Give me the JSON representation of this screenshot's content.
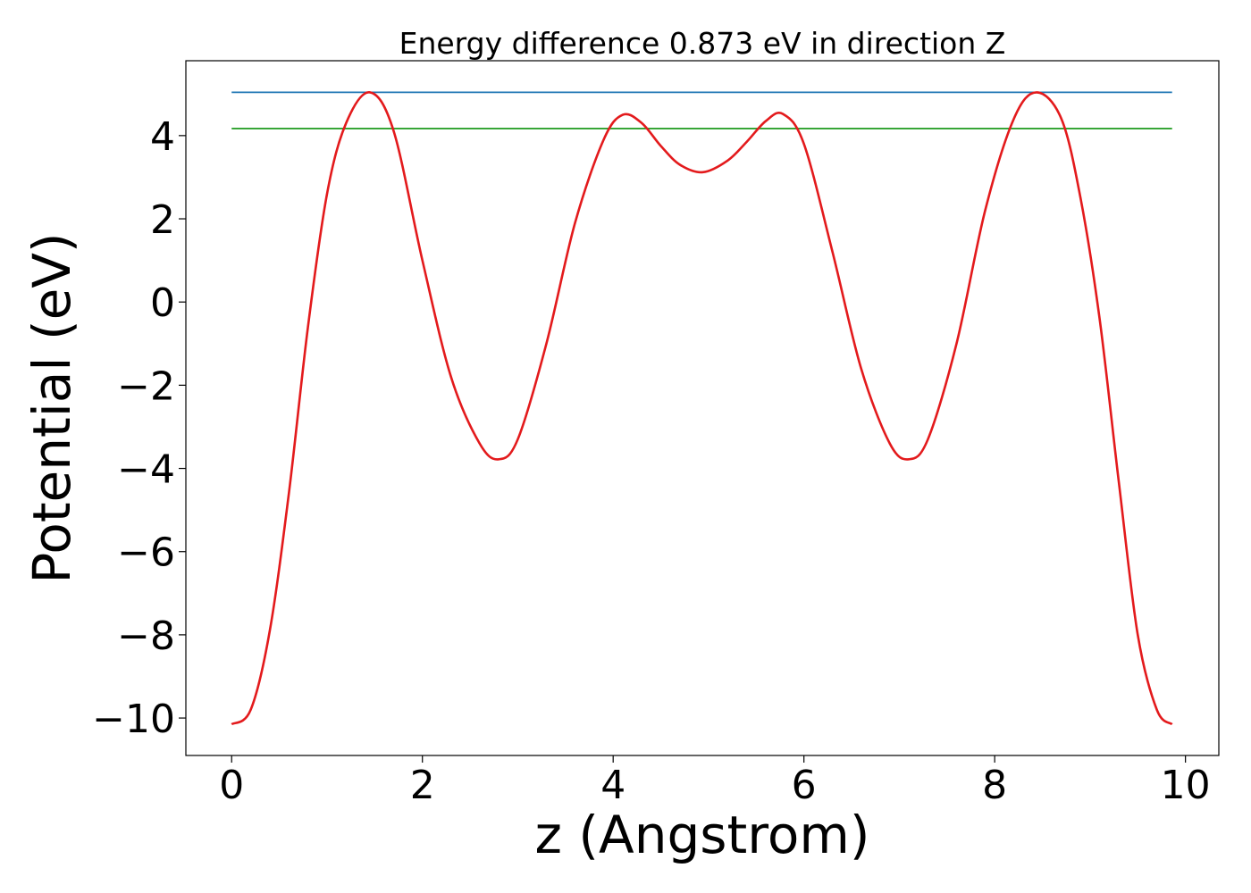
{
  "chart_data": {
    "type": "line",
    "title": "Energy difference 0.873 eV in direction Z",
    "xlabel": "z (Angstrom)",
    "ylabel": "Potential (eV)",
    "xlim": [
      -0.48,
      10.35
    ],
    "ylim": [
      -10.9,
      5.8
    ],
    "xticks": [
      0,
      2,
      4,
      6,
      8,
      10
    ],
    "yticks": [
      4,
      2,
      0,
      -2,
      -4,
      -6,
      -8,
      -10
    ],
    "xtick_labels": [
      "0",
      "2",
      "4",
      "6",
      "8",
      "10"
    ],
    "ytick_labels": [
      "4",
      "2",
      "0",
      "−2",
      "−4",
      "−6",
      "−8",
      "−10"
    ],
    "grid": false,
    "legend": false,
    "series": [
      {
        "kind": "hline",
        "color": "#1f77b4",
        "x": [
          0,
          9.86
        ],
        "y": [
          5.04,
          5.04
        ]
      },
      {
        "kind": "hline",
        "color": "#2ca02c",
        "x": [
          0,
          9.86
        ],
        "y": [
          4.17,
          4.17
        ]
      },
      {
        "kind": "curve",
        "color": "#e31a1c",
        "x": [
          0,
          0.2,
          0.4,
          0.6,
          0.8,
          1.0,
          1.2,
          1.45,
          1.7,
          2.0,
          2.3,
          2.6,
          2.8,
          3.0,
          3.3,
          3.6,
          3.9,
          4.1,
          4.3,
          4.5,
          4.7,
          4.94,
          5.2,
          5.4,
          5.6,
          5.78,
          6.0,
          6.3,
          6.6,
          6.9,
          7.1,
          7.3,
          7.6,
          7.9,
          8.2,
          8.44,
          8.7,
          8.9,
          9.1,
          9.3,
          9.5,
          9.7,
          9.86
        ],
        "y": [
          -10.15,
          -9.8,
          -7.9,
          -4.6,
          -0.6,
          2.6,
          4.3,
          5.04,
          4.1,
          1.0,
          -1.8,
          -3.4,
          -3.78,
          -3.3,
          -1.0,
          1.9,
          3.9,
          4.5,
          4.3,
          3.75,
          3.3,
          3.12,
          3.4,
          3.85,
          4.35,
          4.52,
          3.8,
          1.2,
          -1.6,
          -3.4,
          -3.78,
          -3.3,
          -1.0,
          2.2,
          4.4,
          5.04,
          4.4,
          2.5,
          -0.4,
          -4.3,
          -8.0,
          -9.8,
          -10.15
        ]
      }
    ]
  }
}
